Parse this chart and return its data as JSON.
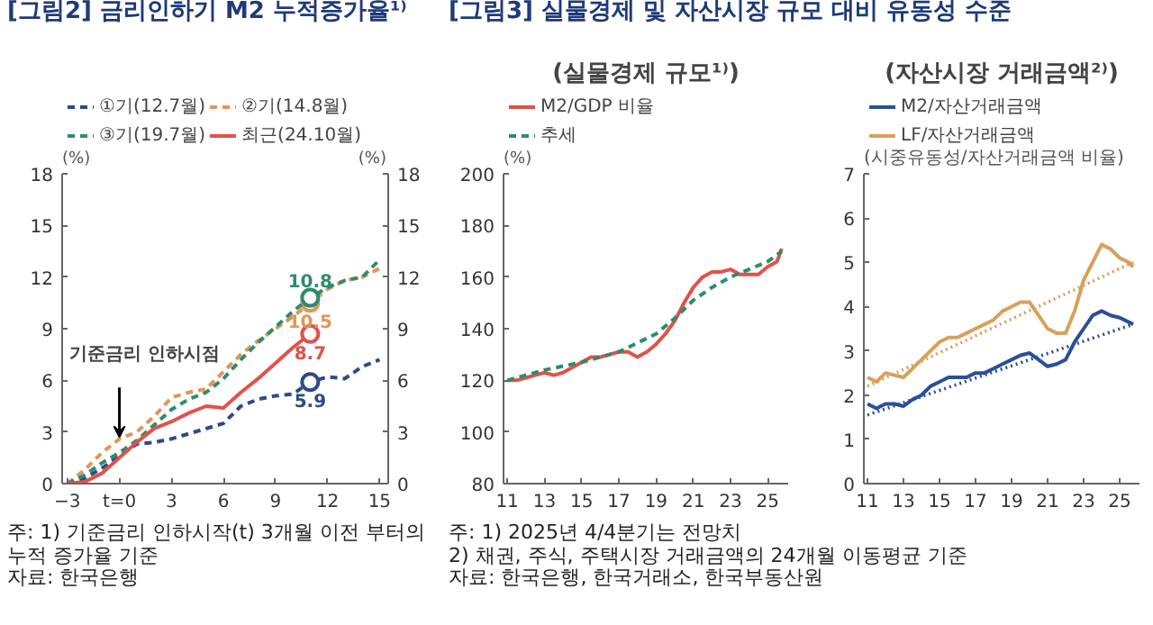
{
  "chart_data": [
    {
      "type": "line",
      "title": "[그림2] 금리인하기 M2 누적증가율¹⁾",
      "ylabel": "(%)",
      "y2label": "(%)",
      "xlim": [
        -3.3,
        15.5
      ],
      "xticks": [
        -3,
        {
          "value": 0,
          "label": "t=0"
        },
        3,
        6,
        9,
        12,
        15
      ],
      "ylim": [
        0,
        18
      ],
      "yticks": [
        0,
        3,
        6,
        9,
        12,
        15,
        18
      ],
      "y2lim": [
        0,
        18
      ],
      "y2ticks": [
        0,
        3,
        6,
        9,
        12,
        15,
        18
      ],
      "legend": "top",
      "grid": false,
      "series": [
        {
          "name": "①기(12.7월)",
          "color": "#2e4a87",
          "line_style": "dashed",
          "x": [
            -3,
            -2,
            -1,
            0,
            1,
            2,
            3,
            4,
            5,
            6,
            7,
            8,
            9,
            10,
            11,
            12,
            13,
            14,
            15
          ],
          "values": [
            0,
            0.3,
            0.9,
            1.6,
            2.3,
            2.4,
            2.6,
            2.9,
            3.2,
            3.5,
            4.5,
            4.9,
            5.1,
            5.2,
            5.9,
            6.2,
            6.1,
            6.8,
            7.2
          ],
          "value_labels": [
            null,
            null,
            null,
            null,
            null,
            null,
            null,
            null,
            null,
            null,
            null,
            null,
            null,
            null,
            "5.9",
            null,
            null,
            null,
            null
          ]
        },
        {
          "name": "②기(14.8월)",
          "color": "#e0955a",
          "line_style": "dashed",
          "x": [
            -3,
            -2,
            -1,
            0,
            1,
            2,
            3,
            4,
            5,
            6,
            7,
            8,
            9,
            10,
            11,
            12,
            13,
            14,
            15
          ],
          "values": [
            0,
            0.8,
            1.8,
            2.6,
            3.0,
            3.9,
            5.0,
            5.3,
            5.5,
            6.5,
            7.5,
            8.3,
            9.0,
            9.7,
            10.5,
            11.3,
            11.8,
            12.0,
            12.5
          ],
          "value_labels": [
            null,
            null,
            null,
            null,
            null,
            null,
            null,
            null,
            null,
            null,
            null,
            null,
            null,
            null,
            "10.5",
            null,
            null,
            null,
            null
          ]
        },
        {
          "name": "③기(19.7월)",
          "color": "#2e8b6e",
          "line_style": "dashed",
          "x": [
            -3,
            -2,
            -1,
            0,
            1,
            2,
            3,
            4,
            5,
            6,
            7,
            8,
            9,
            10,
            11,
            12,
            13,
            14,
            15
          ],
          "values": [
            0,
            0.5,
            1.2,
            1.8,
            2.5,
            3.4,
            4.3,
            4.9,
            5.3,
            6.1,
            7.2,
            8.2,
            9.1,
            10.0,
            10.8,
            11.4,
            11.8,
            12.0,
            13.0
          ],
          "value_labels": [
            null,
            null,
            null,
            null,
            null,
            null,
            null,
            null,
            null,
            null,
            null,
            null,
            null,
            null,
            "10.8",
            null,
            null,
            null,
            null
          ]
        },
        {
          "name": "최근(24.10월)",
          "color": "#e0524a",
          "line_style": "solid",
          "x": [
            -3,
            -2,
            -1,
            0,
            1,
            2,
            3,
            4,
            5,
            6,
            7,
            8,
            9,
            10,
            11
          ],
          "values": [
            0,
            0.1,
            0.6,
            1.5,
            2.4,
            3.2,
            3.6,
            4.1,
            4.5,
            4.4,
            5.3,
            6.1,
            7.0,
            7.9,
            8.7
          ],
          "value_labels": [
            null,
            null,
            null,
            null,
            null,
            null,
            null,
            null,
            null,
            null,
            null,
            null,
            null,
            null,
            "8.7"
          ]
        }
      ],
      "annotations": [
        {
          "text": "기준금리 인하시점",
          "x": 0,
          "y": 2.7
        },
        "주: 1) 기준금리 인하시작(t) 3개월 이전 부터의 누적 증가율 기준",
        "자료: 한국은행"
      ]
    },
    {
      "type": "line",
      "title": "[그림3] 실물경제 및 자산시장 규모 대비 유동성 수준",
      "subtitle": "(실물경제 규모¹⁾)",
      "ylabel": "(%)",
      "xlim": [
        10.8,
        26.1
      ],
      "xticks": [
        11,
        13,
        15,
        17,
        19,
        21,
        23,
        25
      ],
      "ylim": [
        80,
        200
      ],
      "yticks": [
        80,
        100,
        120,
        140,
        160,
        180,
        200
      ],
      "legend": "top",
      "grid": false,
      "series": [
        {
          "name": "M2/GDP 비율",
          "color": "#e0524a",
          "line_style": "solid",
          "x": [
            11,
            11.5,
            12,
            12.5,
            13,
            13.5,
            14,
            14.5,
            15,
            15.5,
            16,
            16.5,
            17,
            17.5,
            18,
            18.5,
            19,
            19.5,
            20,
            20.5,
            21,
            21.5,
            22,
            22.5,
            23,
            23.5,
            24,
            24.5,
            25,
            25.5,
            25.75
          ],
          "values": [
            120,
            120,
            121,
            122,
            123,
            122,
            123,
            125,
            127,
            129,
            129,
            130,
            131,
            131,
            129,
            131,
            134,
            138,
            143,
            150,
            156,
            160,
            162,
            162,
            163,
            161,
            161,
            161,
            164,
            166,
            171
          ]
        },
        {
          "name": "추세",
          "color": "#2e8b6e",
          "line_style": "dashed",
          "x": [
            11,
            13,
            15,
            17,
            19,
            20,
            21,
            22,
            23,
            24,
            25,
            25.75
          ],
          "values": [
            120,
            124,
            127,
            131,
            138,
            144,
            151,
            156,
            160,
            163,
            166,
            170
          ]
        }
      ],
      "annotations": [
        "주: 1) 2025년 4/4분기는 전망치",
        "2) 채권, 주식, 주택시장 거래금액의 24개월 이동평균 기준",
        "자료: 한국은행, 한국거래소, 한국부동산원"
      ]
    },
    {
      "type": "line",
      "title": "(자산시장 거래금액²⁾)",
      "ylabel": "(시중유동성/자산거래금액 비율)",
      "xlim": [
        10.8,
        26.1
      ],
      "xticks": [
        11,
        13,
        15,
        17,
        19,
        21,
        23,
        25
      ],
      "ylim": [
        0,
        7
      ],
      "yticks": [
        0,
        1,
        2,
        3,
        4,
        5,
        6,
        7
      ],
      "legend": "top",
      "grid": false,
      "series": [
        {
          "name": "M2/자산거래금액",
          "color": "#2a4f9a",
          "line_style": "solid",
          "x": [
            11,
            11.5,
            12,
            12.5,
            13,
            13.5,
            14,
            14.5,
            15,
            15.5,
            16,
            16.5,
            17,
            17.5,
            18,
            18.5,
            19,
            19.5,
            20,
            20.5,
            21,
            21.5,
            22,
            22.5,
            23,
            23.5,
            24,
            24.5,
            25,
            25.5,
            25.75
          ],
          "values": [
            1.8,
            1.7,
            1.8,
            1.8,
            1.75,
            1.9,
            2.0,
            2.2,
            2.3,
            2.4,
            2.4,
            2.4,
            2.5,
            2.5,
            2.6,
            2.7,
            2.8,
            2.9,
            2.95,
            2.8,
            2.65,
            2.7,
            2.8,
            3.2,
            3.5,
            3.8,
            3.9,
            3.8,
            3.75,
            3.65,
            3.6
          ]
        },
        {
          "name": "LF/자산거래금액",
          "color": "#d9a05b",
          "line_style": "solid",
          "x": [
            11,
            11.5,
            12,
            12.5,
            13,
            13.5,
            14,
            14.5,
            15,
            15.5,
            16,
            16.5,
            17,
            17.5,
            18,
            18.5,
            19,
            19.5,
            20,
            20.5,
            21,
            21.5,
            22,
            22.5,
            23,
            23.5,
            24,
            24.5,
            25,
            25.5,
            25.75
          ],
          "values": [
            2.4,
            2.3,
            2.5,
            2.45,
            2.4,
            2.6,
            2.8,
            3.0,
            3.2,
            3.3,
            3.3,
            3.4,
            3.5,
            3.6,
            3.7,
            3.9,
            4.0,
            4.1,
            4.1,
            3.8,
            3.5,
            3.4,
            3.4,
            3.9,
            4.6,
            5.0,
            5.4,
            5.3,
            5.1,
            5.0,
            4.9
          ]
        },
        {
          "color": "#2a4f9a",
          "line_style": "dotted",
          "x": [
            11,
            25.75
          ],
          "values": [
            1.55,
            3.6
          ]
        },
        {
          "color": "#d9a05b",
          "line_style": "dotted",
          "x": [
            11,
            25.75
          ],
          "values": [
            2.2,
            5.0
          ]
        }
      ]
    }
  ]
}
